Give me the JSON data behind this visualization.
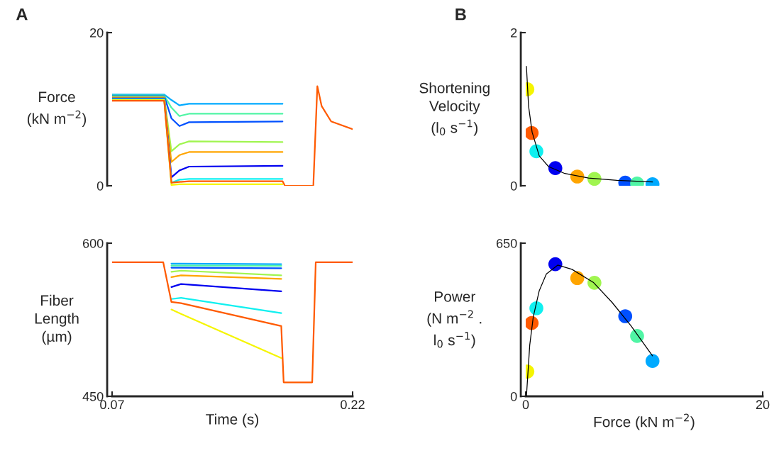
{
  "chart_data": [
    {
      "type": "line",
      "title": "A",
      "ylabel": "Force\n(kN m$^{−2}$)",
      "xlim": [
        0.07,
        0.22
      ],
      "ylim": [
        0,
        20
      ],
      "yticks": [
        0,
        20
      ],
      "tick_labels": "y",
      "grid": false,
      "legend": false,
      "x": [
        0.07,
        0.1025,
        0.107,
        0.112,
        0.118,
        0.1763,
        0.1778,
        0.1955,
        0.198,
        0.2007,
        0.2066,
        0.22
      ],
      "series": [
        {
          "color": "#00aaff",
          "values": [
            11.9,
            11.9,
            11.2,
            10.5,
            10.7,
            10.7,
            null,
            null,
            null,
            null,
            null,
            null
          ]
        },
        {
          "color": "#50f5a5",
          "values": [
            11.8,
            11.8,
            10.2,
            9.1,
            9.4,
            9.4,
            null,
            null,
            null,
            null,
            null,
            null
          ]
        },
        {
          "color": "#0050ff",
          "values": [
            11.7,
            11.7,
            8.8,
            7.8,
            8.3,
            8.4,
            null,
            null,
            null,
            null,
            null,
            null
          ]
        },
        {
          "color": "#a0f550",
          "values": [
            11.6,
            11.6,
            4.5,
            5.4,
            5.8,
            5.7,
            null,
            null,
            null,
            null,
            null,
            null
          ]
        },
        {
          "color": "#ffa500",
          "values": [
            11.5,
            11.5,
            3.1,
            4.0,
            4.4,
            4.4,
            null,
            null,
            null,
            null,
            null,
            null
          ]
        },
        {
          "color": "#0000f0",
          "values": [
            11.4,
            11.4,
            1.1,
            2.0,
            2.5,
            2.6,
            null,
            null,
            null,
            null,
            null,
            null
          ]
        },
        {
          "color": "#10f0f0",
          "values": [
            11.3,
            11.3,
            0.4,
            0.8,
            0.9,
            0.9,
            null,
            null,
            null,
            null,
            null,
            null
          ]
        },
        {
          "color": "#f5f500",
          "values": [
            11.2,
            11.2,
            0.1,
            0.2,
            0.2,
            0.2,
            null,
            null,
            null,
            null,
            null,
            null
          ]
        },
        {
          "color": "#ff5a00",
          "values": [
            11.1,
            11.1,
            0.4,
            0.5,
            0.6,
            0.6,
            0,
            0,
            13.0,
            10.4,
            8.4,
            7.4
          ]
        }
      ]
    },
    {
      "type": "line",
      "xlabel": "Time (s)",
      "ylabel": "Fiber\nLength\n(µm)",
      "xlim": [
        0.07,
        0.22
      ],
      "xticks": [
        0.07,
        0.22
      ],
      "ylim": [
        450,
        600
      ],
      "yticks": [
        450,
        600
      ],
      "grid": false,
      "legend": false,
      "x": [
        0.07,
        0.1019,
        0.107,
        0.113,
        0.1755,
        0.177,
        0.1948,
        0.197,
        0.22
      ],
      "series": [
        {
          "color": "#00aaff",
          "values": [
            null,
            null,
            580,
            580,
            579.5,
            null,
            null,
            null,
            null
          ]
        },
        {
          "color": "#50f5a5",
          "values": [
            null,
            null,
            578,
            578,
            577.8,
            null,
            null,
            null,
            null
          ]
        },
        {
          "color": "#0050ff",
          "values": [
            null,
            null,
            576,
            576,
            575.5,
            null,
            null,
            null,
            null
          ]
        },
        {
          "color": "#a0f550",
          "values": [
            null,
            null,
            572,
            573.1,
            568.5,
            null,
            null,
            null,
            null
          ]
        },
        {
          "color": "#ffa500",
          "values": [
            null,
            null,
            566.7,
            568.5,
            565,
            null,
            null,
            null,
            null
          ]
        },
        {
          "color": "#0000f0",
          "values": [
            null,
            null,
            557,
            560,
            552.8,
            null,
            null,
            null,
            null
          ]
        },
        {
          "color": "#10f0f0",
          "values": [
            null,
            null,
            545.3,
            546.5,
            531.5,
            null,
            null,
            null,
            null
          ]
        },
        {
          "color": "#f5f500",
          "values": [
            null,
            null,
            535,
            530.8,
            487.5,
            null,
            null,
            null,
            null
          ]
        },
        {
          "color": "#ff5a00",
          "values": [
            581.3,
            581.3,
            542.4,
            541.2,
            518.8,
            463.7,
            463.7,
            581.3,
            581.3
          ]
        }
      ]
    },
    {
      "type": "scatter",
      "title": "B",
      "ylabel": "Shortening\nVelocity\n(l$_{0}$ s$^{−1}$)",
      "xlim": [
        0,
        20
      ],
      "ylim": [
        0,
        2
      ],
      "yticks": [
        0,
        2
      ],
      "tick_labels": "y",
      "grid": false,
      "legend": false,
      "marker": "circle",
      "series": [
        {
          "type": "line",
          "marker": "none",
          "color": "#000000",
          "x": [
            0.06,
            0.24,
            0.54,
            1.14,
            1.93,
            3.3,
            5.3,
            7.7,
            10.7
          ],
          "values": [
            1.56,
            1.04,
            0.7,
            0.39,
            0.25,
            0.16,
            0.1,
            0.07,
            0.05
          ]
        },
        {
          "type": "scatter",
          "x": [
            0.14,
            0.5,
            0.9,
            2.5,
            4.35,
            5.8,
            8.4,
            9.4,
            10.7
          ],
          "values": [
            1.26,
            0.69,
            0.45,
            0.23,
            0.12,
            0.09,
            0.04,
            0.03,
            0.02
          ],
          "colors": [
            "#f5f500",
            "#ff5a00",
            "#10f0f0",
            "#0000f0",
            "#ffa500",
            "#a0f550",
            "#0050ff",
            "#50f5a5",
            "#00aaff"
          ]
        }
      ]
    },
    {
      "type": "scatter",
      "xlabel": "Force (kN m$^{−2}$)",
      "ylabel": "Power\n(N m$^{−2}$ .\nl$_{0}$ s$^{−1}$)",
      "xlim": [
        0,
        20
      ],
      "xticks": [
        0,
        20
      ],
      "ylim": [
        0,
        650
      ],
      "yticks": [
        0,
        650
      ],
      "grid": false,
      "legend": false,
      "marker": "circle",
      "series": [
        {
          "type": "line",
          "marker": "none",
          "color": "#000000",
          "x": [
            0.06,
            0.34,
            0.64,
            1.14,
            1.74,
            2.7,
            3.9,
            5.7,
            7.3,
            8.9,
            10.7
          ],
          "values": [
            0,
            218,
            338,
            448,
            519,
            557,
            539,
            484,
            398,
            298,
            172
          ]
        },
        {
          "type": "scatter",
          "x": [
            0.14,
            0.5,
            0.9,
            2.5,
            4.35,
            5.8,
            8.4,
            9.4,
            10.7
          ],
          "values": [
            105,
            311,
            374,
            561,
            502,
            482,
            340,
            256,
            150
          ],
          "colors": [
            "#f5f500",
            "#ff5a00",
            "#10f0f0",
            "#0000f0",
            "#ffa500",
            "#a0f550",
            "#0050ff",
            "#50f5a5",
            "#00aaff"
          ]
        }
      ]
    }
  ]
}
